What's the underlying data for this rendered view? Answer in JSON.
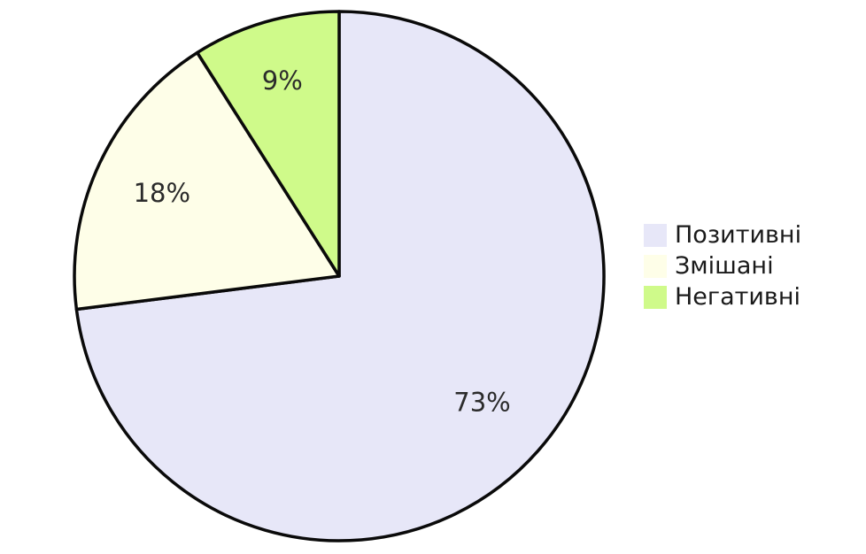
{
  "chart_data": {
    "type": "pie",
    "title": "",
    "categories": [
      "Позитивні",
      "Змішані",
      "Негативні"
    ],
    "values": [
      73,
      18,
      9
    ],
    "slice_labels": [
      "73%",
      "18%",
      "9%"
    ],
    "colors": [
      "#E7E7F8",
      "#FEFEE8",
      "#CFFA8A"
    ],
    "start_angle": "12 o'clock",
    "direction": "clockwise",
    "legend_position": "right",
    "edge_color": "#0a0a0a"
  },
  "legend": {
    "items": [
      {
        "label": "Позитивні",
        "color": "#E7E7F8"
      },
      {
        "label": "Змішані",
        "color": "#FEFEE8"
      },
      {
        "label": "Негативні",
        "color": "#CFFA8A"
      }
    ]
  }
}
